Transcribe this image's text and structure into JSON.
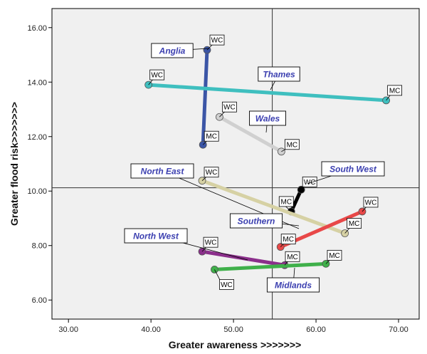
{
  "chart_data": {
    "type": "scatter",
    "title": "",
    "xlabel": "Greater awareness >>>>>>>",
    "ylabel": "Greater flood risk>>>>>>>",
    "xlim": [
      28,
      72.5
    ],
    "ylim": [
      5.3,
      16.7
    ],
    "x_ticks": [
      "30.00",
      "40.00",
      "50.00",
      "60.00",
      "70.00"
    ],
    "y_ticks": [
      "6.00",
      "8.00",
      "10.00",
      "12.00",
      "14.00",
      "16.00"
    ],
    "reference_lines": {
      "x": 54.7,
      "y": 10.12
    },
    "grid": false,
    "background": "#f0f0f0",
    "series": [
      {
        "name": "Anglia",
        "color": "#3b55a6",
        "points": [
          {
            "label": "WC",
            "x": 46.8,
            "y": 15.18
          },
          {
            "label": "MC",
            "x": 46.3,
            "y": 11.7
          }
        ]
      },
      {
        "name": "Thames",
        "color": "#3fbfbf",
        "points": [
          {
            "label": "WC",
            "x": 39.7,
            "y": 13.9
          },
          {
            "label": "MC",
            "x": 68.5,
            "y": 13.33
          }
        ]
      },
      {
        "name": "Wales",
        "color": "#d0d0d0",
        "points": [
          {
            "label": "WC",
            "x": 48.3,
            "y": 12.72
          },
          {
            "label": "MC",
            "x": 55.8,
            "y": 11.45
          }
        ]
      },
      {
        "name": "South West",
        "color": "#000000",
        "points": [
          {
            "label": "WC",
            "x": 58.2,
            "y": 10.05
          },
          {
            "label": "MC",
            "x": 57.0,
            "y": 9.25
          }
        ]
      },
      {
        "name": "North East",
        "color": "#d6d1a4",
        "points": [
          {
            "label": "WC",
            "x": 46.2,
            "y": 10.38
          },
          {
            "label": "MC",
            "x": 63.5,
            "y": 8.45
          }
        ]
      },
      {
        "name": "Southern",
        "color": "#e84848",
        "points": [
          {
            "label": "WC",
            "x": 65.6,
            "y": 9.25
          },
          {
            "label": "MC",
            "x": 55.7,
            "y": 7.95
          }
        ]
      },
      {
        "name": "North West",
        "color": "#8b2f8b",
        "points": [
          {
            "label": "WC",
            "x": 46.2,
            "y": 7.78
          },
          {
            "label": "MC",
            "x": 56.2,
            "y": 7.28
          }
        ]
      },
      {
        "name": "Midlands",
        "color": "#3fb04a",
        "points": [
          {
            "label": "WC",
            "x": 47.7,
            "y": 7.12
          },
          {
            "label": "MC",
            "x": 61.2,
            "y": 7.33
          }
        ]
      }
    ]
  }
}
